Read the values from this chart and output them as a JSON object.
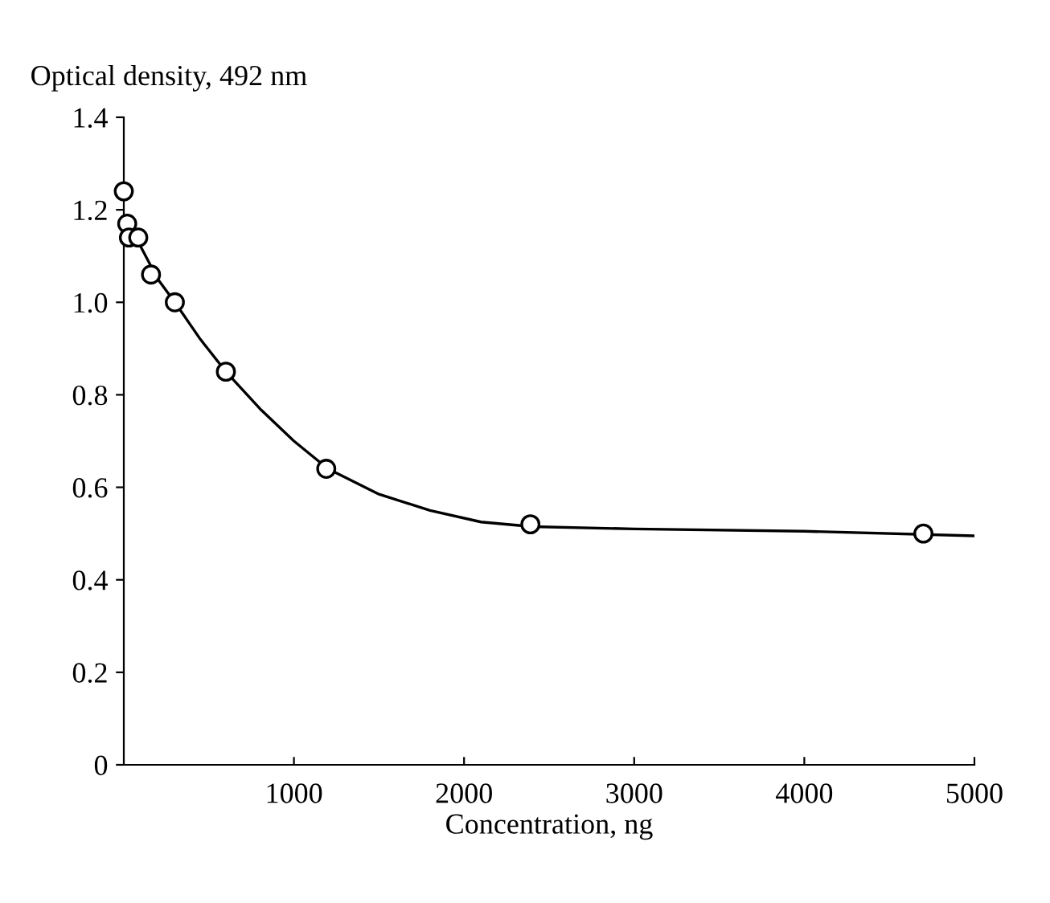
{
  "chart_data": {
    "type": "scatter",
    "xlabel": "Concentration, ng",
    "ylabel": "Optical density, 492 nm",
    "series": [
      {
        "type": "line",
        "color": "#000000",
        "marker": "none",
        "x": [
          20,
          100,
          200,
          300,
          450,
          600,
          800,
          1000,
          1200,
          1500,
          1800,
          2100,
          2400,
          3000,
          4000,
          5000
        ],
        "values": [
          1.17,
          1.12,
          1.05,
          1.0,
          0.92,
          0.85,
          0.77,
          0.7,
          0.64,
          0.585,
          0.55,
          0.525,
          0.515,
          0.51,
          0.505,
          0.495
        ]
      },
      {
        "color": "#000000",
        "marker": "circle",
        "x": [
          0,
          20,
          30,
          85,
          160,
          300,
          600,
          1190,
          2390,
          4700
        ],
        "values": [
          1.24,
          1.17,
          1.14,
          1.14,
          1.06,
          1.0,
          0.85,
          0.64,
          0.52,
          0.5
        ]
      }
    ],
    "xlim": [
      0,
      5000
    ],
    "xticks": [
      1000,
      2000,
      3000,
      4000,
      5000
    ],
    "ylim": [
      0,
      1.4
    ],
    "yticks": [
      0,
      0.2,
      0.4,
      0.6,
      0.8,
      {
        "value": 1.0,
        "label": "1.0"
      },
      1.2,
      1.4
    ],
    "grid": false,
    "legend": false
  }
}
